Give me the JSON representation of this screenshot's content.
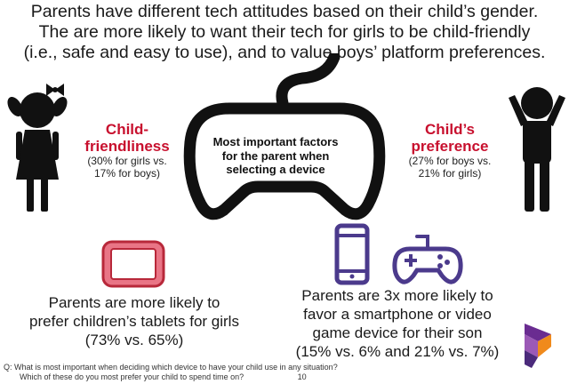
{
  "headline": {
    "line1": "Parents have different tech attitudes based on their child’s gender.",
    "line2": "The are more likely to want their tech for girls to be child-friendly",
    "line3": "(i.e., safe and easy to use), and to value boys’ platform preferences."
  },
  "left_factor": {
    "title_line1": "Child-",
    "title_line2": "friendliness",
    "detail_line1": "(30% for girls vs.",
    "detail_line2": "17% for boys)"
  },
  "right_factor": {
    "title_line1": "Child’s",
    "title_line2": "preference",
    "detail_line1": "(27% for boys vs.",
    "detail_line2": "21% for girls)"
  },
  "center": {
    "line1": "Most important factors",
    "line2": "for the parent when",
    "line3": "selecting a device"
  },
  "girls_finding": {
    "line1": "Parents are more likely to",
    "line2": "prefer children’s tablets for girls",
    "line3": "(73% vs. 65%)"
  },
  "boys_finding": {
    "line1": "Parents are 3x more likely to",
    "line2": "favor a smartphone or video",
    "line3": "game device for their son",
    "line4": "(15% vs. 6% and 21% vs. 7%)"
  },
  "footnote": {
    "line1": "Q: What is most important when deciding which device to have your child use in any situation?",
    "line2": "Which of these do you most prefer your child to spend time on?",
    "page_number": "10"
  },
  "colors": {
    "accent_red": "#c8102e",
    "icon_purple": "#4b3a8c",
    "tablet_red": "#b8283a",
    "logo_purple": "#6a2c91",
    "logo_orange": "#f08a1c"
  },
  "icons": [
    "girl-silhouette-icon",
    "boy-silhouette-icon",
    "controller-outline-icon",
    "tablet-icon",
    "smartphone-icon",
    "gamepad-icon",
    "brand-logo-icon"
  ]
}
